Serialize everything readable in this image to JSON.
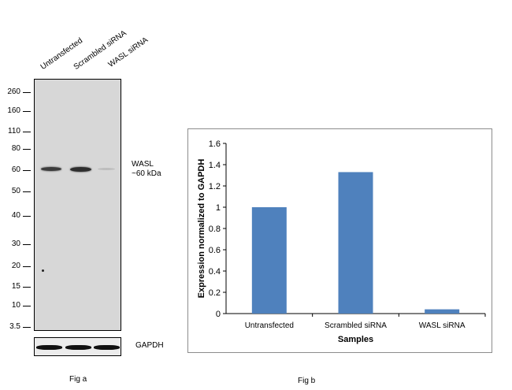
{
  "figure_a": {
    "lane_labels": [
      "Untransfected",
      "Scrambled siRNA",
      "WASL  siRNA"
    ],
    "mw_markers": [
      "260",
      "160",
      "110",
      "80",
      "60",
      "50",
      "40",
      "30",
      "20",
      "15",
      "10",
      "3.5"
    ],
    "target_label": "WASL",
    "target_size": "~60 kDa",
    "loading_control": "GAPDH",
    "caption": "Fig a"
  },
  "figure_b": {
    "caption": "Fig b"
  },
  "chart_data": {
    "type": "bar",
    "categories": [
      "Untransfected",
      "Scrambled siRNA",
      "WASL siRNA"
    ],
    "values": [
      1.0,
      1.33,
      0.04
    ],
    "xlabel": "Samples",
    "ylabel": "Expression normalized to GAPDH",
    "ylim": [
      0,
      1.6
    ],
    "yticks": [
      "0",
      "0.2",
      "0.4",
      "0.6",
      "0.8",
      "1",
      "1.2",
      "1.4",
      "1.6"
    ],
    "grid": false,
    "legend": "none",
    "bar_color": "#4f81bd"
  }
}
